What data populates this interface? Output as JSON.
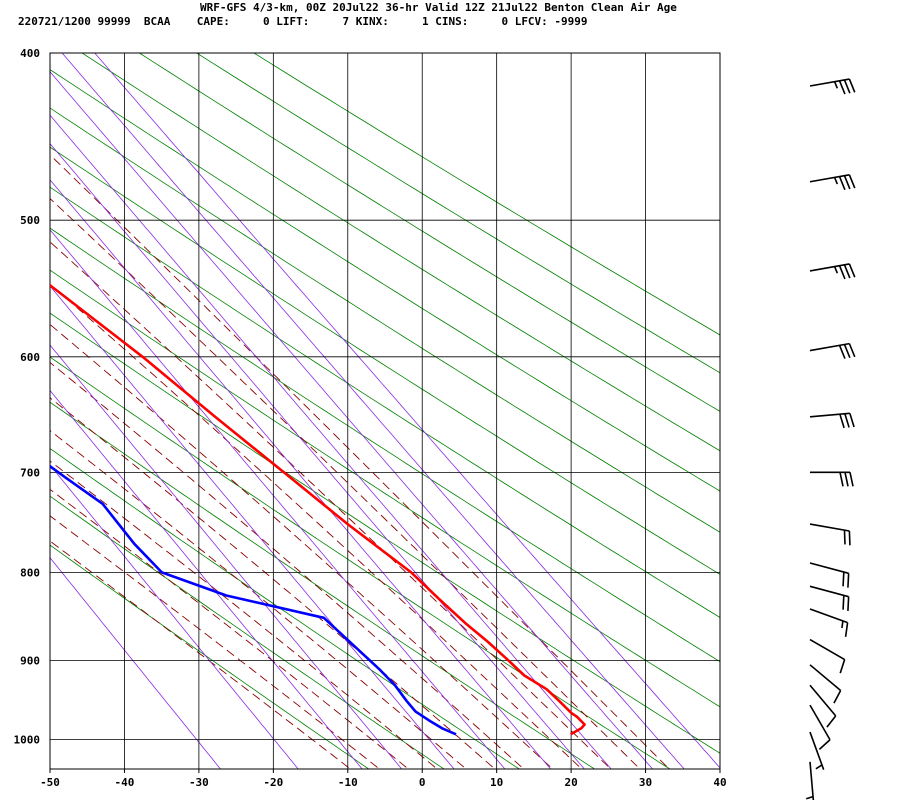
{
  "header": {
    "line1": "WRF-GFS 4/3-km, 00Z 20Jul22 36-hr Valid 12Z 21Jul22 Benton Clean Air Age",
    "line2": "220721/1200 99999  BCAA    CAPE:     0 LIFT:     7 KINX:     1 CINS:     0 LFCV: -9999"
  },
  "colors": {
    "temperature": "#ff0000",
    "dewpoint": "#0000ff",
    "dry_adiabat": "#008000",
    "moist_adiabat": "#8b0000",
    "mixing_ratio": "#8a2be2",
    "grid": "#000000",
    "barb": "#000000"
  },
  "chart_data": {
    "type": "line",
    "title": "",
    "xlabel": "",
    "ylabel": "",
    "xlim": [
      -50,
      40
    ],
    "ylim": [
      1040,
      400
    ],
    "y_scale": "log",
    "x_ticks": [
      -50,
      -40,
      -30,
      -20,
      -10,
      0,
      10,
      20,
      30,
      40
    ],
    "x_tick_labels": [
      "-50",
      "-40",
      "-30",
      "-20",
      "-10",
      "0",
      "10",
      "20",
      "30",
      "40"
    ],
    "y_ticks": [
      400,
      500,
      600,
      700,
      800,
      900,
      1000
    ],
    "y_tick_labels": [
      "400",
      "500",
      "600",
      "700",
      "800",
      "900",
      "1000"
    ],
    "grid": true,
    "series": [
      {
        "id": "temperature",
        "color": "#ff0000",
        "points": [
          {
            "t": 23.2,
            "p": 993
          },
          {
            "t": 25.2,
            "p": 985
          },
          {
            "t": 26.0,
            "p": 980
          },
          {
            "t": 25.7,
            "p": 970
          },
          {
            "t": 25.3,
            "p": 965
          },
          {
            "t": 24.8,
            "p": 950
          },
          {
            "t": 24.2,
            "p": 935
          },
          {
            "t": 22.5,
            "p": 918
          },
          {
            "t": 21.8,
            "p": 900
          },
          {
            "t": 20.8,
            "p": 878
          },
          {
            "t": 19.5,
            "p": 856
          },
          {
            "t": 18.3,
            "p": 830
          },
          {
            "t": 17.0,
            "p": 800
          },
          {
            "t": 13.0,
            "p": 750
          },
          {
            "t": 9.3,
            "p": 700
          },
          {
            "t": 5.3,
            "p": 650
          },
          {
            "t": 1.2,
            "p": 600
          },
          {
            "t": -4.0,
            "p": 550
          },
          {
            "t": -10.0,
            "p": 500
          },
          {
            "t": -16.5,
            "p": 450
          },
          {
            "t": -20.0,
            "p": 418
          }
        ]
      },
      {
        "id": "dewpoint",
        "color": "#0000ff",
        "points": [
          {
            "t": 7.8,
            "p": 993
          },
          {
            "t": 6.5,
            "p": 985
          },
          {
            "t": 5.5,
            "p": 975
          },
          {
            "t": 4.5,
            "p": 963
          },
          {
            "t": 4.3,
            "p": 950
          },
          {
            "t": 4.2,
            "p": 930
          },
          {
            "t": 3.6,
            "p": 910
          },
          {
            "t": 1.0,
            "p": 850
          },
          {
            "t": -10.0,
            "p": 825
          },
          {
            "t": -16.5,
            "p": 800
          },
          {
            "t": -17.5,
            "p": 770
          },
          {
            "t": -18.0,
            "p": 730
          },
          {
            "t": -20.5,
            "p": 705
          },
          {
            "t": -26.5,
            "p": 645
          },
          {
            "t": -34.5,
            "p": 535
          },
          {
            "t": -38.5,
            "p": 478
          },
          {
            "t": -40.0,
            "p": 418
          }
        ]
      }
    ],
    "background_lines": {
      "dry_adiabats_theta_K": [
        263,
        273,
        283,
        293,
        303,
        313,
        323,
        333,
        343,
        353,
        363,
        373,
        383,
        393,
        403,
        413
      ],
      "moist_adiabats_thetaw_C": [
        -12,
        -8,
        -4,
        0,
        4,
        8,
        12,
        16,
        20,
        24,
        28,
        32
      ],
      "mixing_ratio_g_kg": [
        0.4,
        1,
        2,
        3,
        5,
        8,
        12,
        16,
        20,
        28,
        36,
        48
      ]
    },
    "wind_barbs": [
      {
        "p": 418,
        "dir": 260,
        "kt": 35
      },
      {
        "p": 475,
        "dir": 260,
        "kt": 35
      },
      {
        "p": 535,
        "dir": 260,
        "kt": 35
      },
      {
        "p": 595,
        "dir": 260,
        "kt": 30
      },
      {
        "p": 650,
        "dir": 265,
        "kt": 30
      },
      {
        "p": 700,
        "dir": 270,
        "kt": 30
      },
      {
        "p": 750,
        "dir": 280,
        "kt": 20
      },
      {
        "p": 790,
        "dir": 285,
        "kt": 20
      },
      {
        "p": 815,
        "dir": 285,
        "kt": 20
      },
      {
        "p": 840,
        "dir": 290,
        "kt": 15
      },
      {
        "p": 875,
        "dir": 300,
        "kt": 10
      },
      {
        "p": 905,
        "dir": 310,
        "kt": 10
      },
      {
        "p": 930,
        "dir": 320,
        "kt": 10
      },
      {
        "p": 955,
        "dir": 330,
        "kt": 10
      },
      {
        "p": 990,
        "dir": 340,
        "kt": 5
      },
      {
        "p": 1030,
        "dir": 355,
        "kt": 5
      }
    ]
  }
}
